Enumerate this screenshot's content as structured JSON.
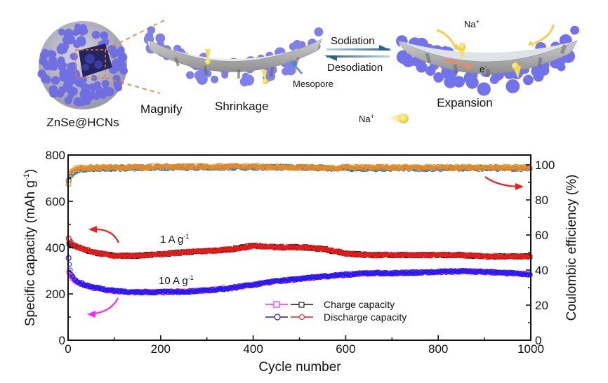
{
  "schematic": {
    "particle_label": "ZnSe@HCNs",
    "magnify_label": "Magnify",
    "shrinkage_label": "Shrinkage",
    "mesopore_label": "Mesopore",
    "sodiation_label": "Sodiation",
    "desodiation_label": "Desodiation",
    "expansion_label": "Expansion",
    "na_ion_label": "Na",
    "na_ion_sup": "+",
    "electron_label": "e",
    "electron_sup": "-",
    "legend_na_label": "Na",
    "legend_na_sup": "+",
    "colors": {
      "znse_particles": "#6a6ae6",
      "carbon_shell": "#b0b0b0",
      "dashed_lines": "#f07a30",
      "na_ion": "#f5dc5a",
      "arrow_blue": "#3d6f98",
      "mesopore_arrow": "#4a90c8"
    }
  },
  "chart_data": {
    "type": "scatter",
    "title": "",
    "xlabel": "Cycle number",
    "ylabel_left": "Specific capacity (mAh g",
    "ylabel_left_sup": "-1",
    "ylabel_left_end": ")",
    "ylabel_right": "Coulombic efficiency (%)",
    "xlim": [
      0,
      1000
    ],
    "ylim_left": [
      0,
      800
    ],
    "ylim_right": [
      0,
      100
    ],
    "x_ticks": [
      "0",
      "200",
      "400",
      "600",
      "800",
      "1000"
    ],
    "y_left_ticks": [
      "0",
      "200",
      "400",
      "600",
      "800"
    ],
    "y_right_ticks": [
      "0",
      "20",
      "40",
      "60",
      "80",
      "100"
    ],
    "grid": false,
    "legend_position": "bottom-center",
    "legend": [
      {
        "label": "Charge capacity",
        "markers": [
          "square-magenta",
          "square-black"
        ]
      },
      {
        "label": "Discharge capacity",
        "markers": [
          "circle-blue",
          "circle-red"
        ]
      }
    ],
    "annotations": [
      {
        "text": "1 A g",
        "sup": "-1",
        "x": 270,
        "y_left": 450
      },
      {
        "text": "10 A g",
        "sup": "-1",
        "x": 270,
        "y_left": 270
      }
    ],
    "series": [
      {
        "name": "Charge capacity 1 A g-1",
        "axis": "left",
        "color": "#111111",
        "marker": "square",
        "x": [
          1,
          10,
          30,
          60,
          100,
          150,
          200,
          250,
          300,
          350,
          400,
          450,
          500,
          550,
          600,
          650,
          700,
          750,
          800,
          850,
          900,
          950,
          1000
        ],
        "y": [
          415,
          410,
          395,
          378,
          365,
          365,
          372,
          380,
          385,
          392,
          408,
          402,
          402,
          395,
          375,
          368,
          368,
          368,
          368,
          368,
          362,
          362,
          362
        ]
      },
      {
        "name": "Discharge capacity 1 A g-1",
        "axis": "left",
        "color": "#ee1c1c",
        "marker": "circle",
        "x": [
          1,
          10,
          30,
          60,
          100,
          150,
          200,
          250,
          300,
          350,
          400,
          450,
          500,
          550,
          600,
          650,
          700,
          750,
          800,
          850,
          900,
          950,
          1000
        ],
        "y": [
          440,
          412,
          395,
          378,
          365,
          365,
          372,
          380,
          385,
          392,
          408,
          402,
          402,
          395,
          375,
          368,
          368,
          368,
          368,
          368,
          362,
          362,
          362
        ]
      },
      {
        "name": "Charge capacity 10 A g-1",
        "axis": "left",
        "color": "#ff22ff",
        "marker": "square",
        "x": [
          1,
          5,
          10,
          20,
          40,
          60,
          100,
          150,
          200,
          250,
          300,
          350,
          400,
          450,
          500,
          550,
          600,
          650,
          700,
          750,
          800,
          850,
          900,
          950,
          1000
        ],
        "y": [
          300,
          280,
          265,
          250,
          235,
          225,
          212,
          208,
          208,
          210,
          215,
          225,
          240,
          255,
          265,
          275,
          283,
          290,
          290,
          292,
          295,
          298,
          295,
          290,
          285
        ]
      },
      {
        "name": "Discharge capacity 10 A g-1",
        "axis": "left",
        "color": "#1a1aee",
        "marker": "circle",
        "x": [
          1,
          5,
          10,
          20,
          40,
          60,
          100,
          150,
          200,
          250,
          300,
          350,
          400,
          450,
          500,
          550,
          600,
          650,
          700,
          750,
          800,
          850,
          900,
          950,
          1000
        ],
        "y": [
          355,
          300,
          272,
          252,
          236,
          226,
          213,
          208,
          208,
          210,
          215,
          225,
          240,
          255,
          265,
          275,
          283,
          290,
          290,
          292,
          295,
          298,
          295,
          290,
          285
        ]
      },
      {
        "name": "Coulombic efficiency 1 A g-1",
        "axis": "right",
        "color": "#f08a1c",
        "marker": "circle",
        "x": [
          1,
          5,
          10,
          20,
          50,
          100,
          200,
          300,
          400,
          500,
          600,
          700,
          800,
          900,
          1000
        ],
        "y": [
          89,
          95,
          97,
          98,
          98.5,
          98.5,
          99,
          99,
          99,
          98.5,
          98.5,
          98.5,
          98.5,
          98.5,
          98.5
        ]
      },
      {
        "name": "Coulombic efficiency 10 A g-1",
        "axis": "right",
        "color": "#1f77b4",
        "marker": "circle",
        "x": [
          1,
          5,
          10,
          20,
          50,
          100,
          200,
          300,
          400,
          500,
          600,
          700,
          800,
          900,
          1000
        ],
        "y": [
          91,
          93,
          95.5,
          97,
          98,
          98,
          98.5,
          98.5,
          98.5,
          98.5,
          98,
          98,
          98,
          98,
          98
        ]
      }
    ],
    "series_colors": {
      "charge_1A": "#111111",
      "discharge_1A": "#ee1c1c",
      "charge_10A": "#ff22ff",
      "discharge_10A": "#1a1aee",
      "ce_1A": "#f08a1c",
      "ce_10A": "#1f77b4",
      "arrow_red": "#ee1c1c",
      "arrow_magenta": "#ff22ff"
    }
  }
}
